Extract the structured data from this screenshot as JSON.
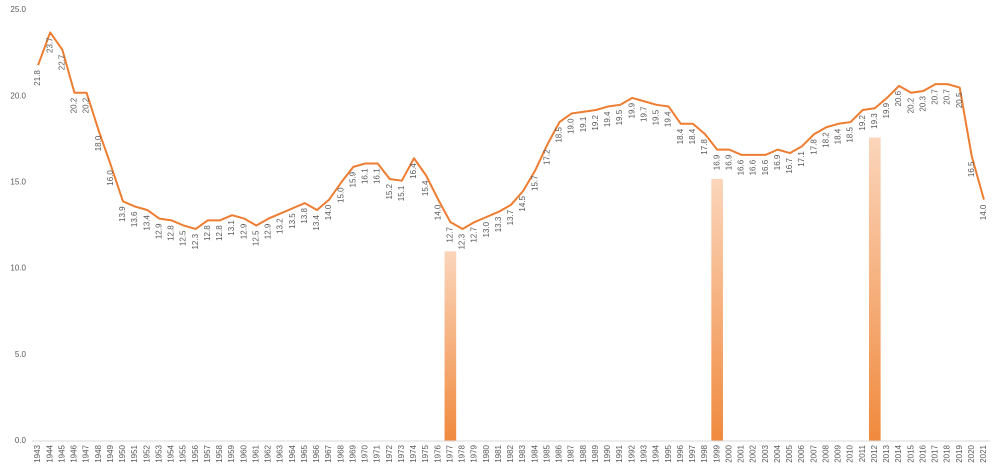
{
  "chart_data": {
    "type": "line",
    "categories": [
      "1943",
      "1944",
      "1945",
      "1946",
      "1947",
      "1948",
      "1949",
      "1950",
      "1951",
      "1952",
      "1953",
      "1954",
      "1955",
      "1956",
      "1957",
      "1958",
      "1959",
      "1960",
      "1961",
      "1962",
      "1963",
      "1964",
      "1965",
      "1966",
      "1967",
      "1968",
      "1969",
      "1970",
      "1971",
      "1972",
      "1973",
      "1974",
      "1975",
      "1976",
      "1977",
      "1978",
      "1979",
      "1980",
      "1981",
      "1982",
      "1983",
      "1984",
      "1985",
      "1986",
      "1987",
      "1988",
      "1989",
      "1990",
      "1991",
      "1992",
      "1993",
      "1994",
      "1995",
      "1996",
      "1997",
      "1998",
      "1999",
      "2000",
      "2001",
      "2002",
      "2003",
      "2004",
      "2005",
      "2006",
      "2007",
      "2008",
      "2009",
      "2010",
      "2011",
      "2012",
      "2013",
      "2014",
      "2015",
      "2016",
      "2017",
      "2018",
      "2019",
      "2020",
      "2021"
    ],
    "series": [
      {
        "type": "line",
        "color": "#ed7d31",
        "values": [
          21.8,
          23.7,
          22.7,
          20.2,
          20.2,
          18.0,
          16.0,
          13.9,
          13.6,
          13.4,
          12.9,
          12.8,
          12.5,
          12.3,
          12.8,
          12.8,
          13.1,
          12.9,
          12.5,
          12.9,
          13.2,
          13.5,
          13.8,
          13.4,
          14.0,
          15.0,
          15.9,
          16.1,
          16.1,
          15.2,
          15.1,
          16.4,
          15.4,
          14.0,
          12.7,
          12.3,
          12.7,
          13.0,
          13.3,
          13.7,
          14.5,
          15.7,
          17.2,
          18.5,
          19.0,
          19.1,
          19.2,
          19.4,
          19.5,
          19.9,
          19.7,
          19.5,
          19.4,
          18.4,
          18.4,
          17.8,
          16.9,
          16.9,
          16.6,
          16.6,
          16.6,
          16.9,
          16.7,
          17.1,
          17.8,
          18.2,
          18.4,
          18.5,
          19.2,
          19.3,
          19.9,
          20.6,
          20.2,
          20.3,
          20.7,
          20.7,
          20.5,
          16.5,
          14.0
        ],
        "value_labels": [
          "21.8",
          "23.7",
          "22.7",
          "20.2",
          "20.2",
          "18.0",
          "16.0",
          "13.9",
          "13.6",
          "13.4",
          "12.9",
          "12.8",
          "12.5",
          "12.3",
          "12.8",
          "12.8",
          "13.1",
          "12.9",
          "12.5",
          "12.9",
          "13.2",
          "13.5",
          "13.8",
          "13.4",
          "14.0",
          "15.0",
          "15.9",
          "16.1",
          "16.1",
          "15.2",
          "15.1",
          "16.4",
          "15.4",
          "14.0",
          "12.7",
          "12.3",
          "12.7",
          "13.0",
          "13.3",
          "13.7",
          "14.5",
          "15.7",
          "17.2",
          "18.5",
          "19.0",
          "19.1",
          "19.2",
          "19.4",
          "19.5",
          "19.9",
          "19.7",
          "19.5",
          "19.4",
          "18.4",
          "18.4",
          "17.8",
          "16.9",
          "16.9",
          "16.6",
          "16.6",
          "16.6",
          "16.9",
          "16.7",
          "17.1",
          "17.8",
          "18.2",
          "18.4",
          "18.5",
          "19.2",
          "19.3",
          "19.9",
          "20.6",
          "20.2",
          "20.3",
          "20.7",
          "20.7",
          "20.5",
          "16.5",
          "14.0"
        ]
      },
      {
        "type": "bar",
        "color": "#ed7d31",
        "values": [
          null,
          null,
          null,
          null,
          null,
          null,
          null,
          null,
          null,
          null,
          null,
          null,
          null,
          null,
          null,
          null,
          null,
          null,
          null,
          null,
          null,
          null,
          null,
          null,
          null,
          null,
          null,
          null,
          null,
          null,
          null,
          null,
          null,
          null,
          11.0,
          null,
          null,
          null,
          null,
          null,
          null,
          null,
          null,
          null,
          null,
          null,
          null,
          null,
          null,
          null,
          null,
          null,
          null,
          null,
          null,
          null,
          15.2,
          null,
          null,
          null,
          null,
          null,
          null,
          null,
          null,
          null,
          null,
          null,
          null,
          17.6,
          null,
          null,
          null,
          null,
          null,
          null,
          null,
          null,
          null
        ]
      }
    ],
    "ylim": [
      0,
      25
    ],
    "yticks": [
      {
        "value": 0,
        "label": "0.0"
      },
      {
        "value": 5,
        "label": "5.0"
      },
      {
        "value": 10,
        "label": "10.0"
      },
      {
        "value": 15,
        "label": "15.0"
      },
      {
        "value": 20,
        "label": "20.0"
      },
      {
        "value": 25,
        "label": "25.0"
      }
    ],
    "grid": false
  }
}
